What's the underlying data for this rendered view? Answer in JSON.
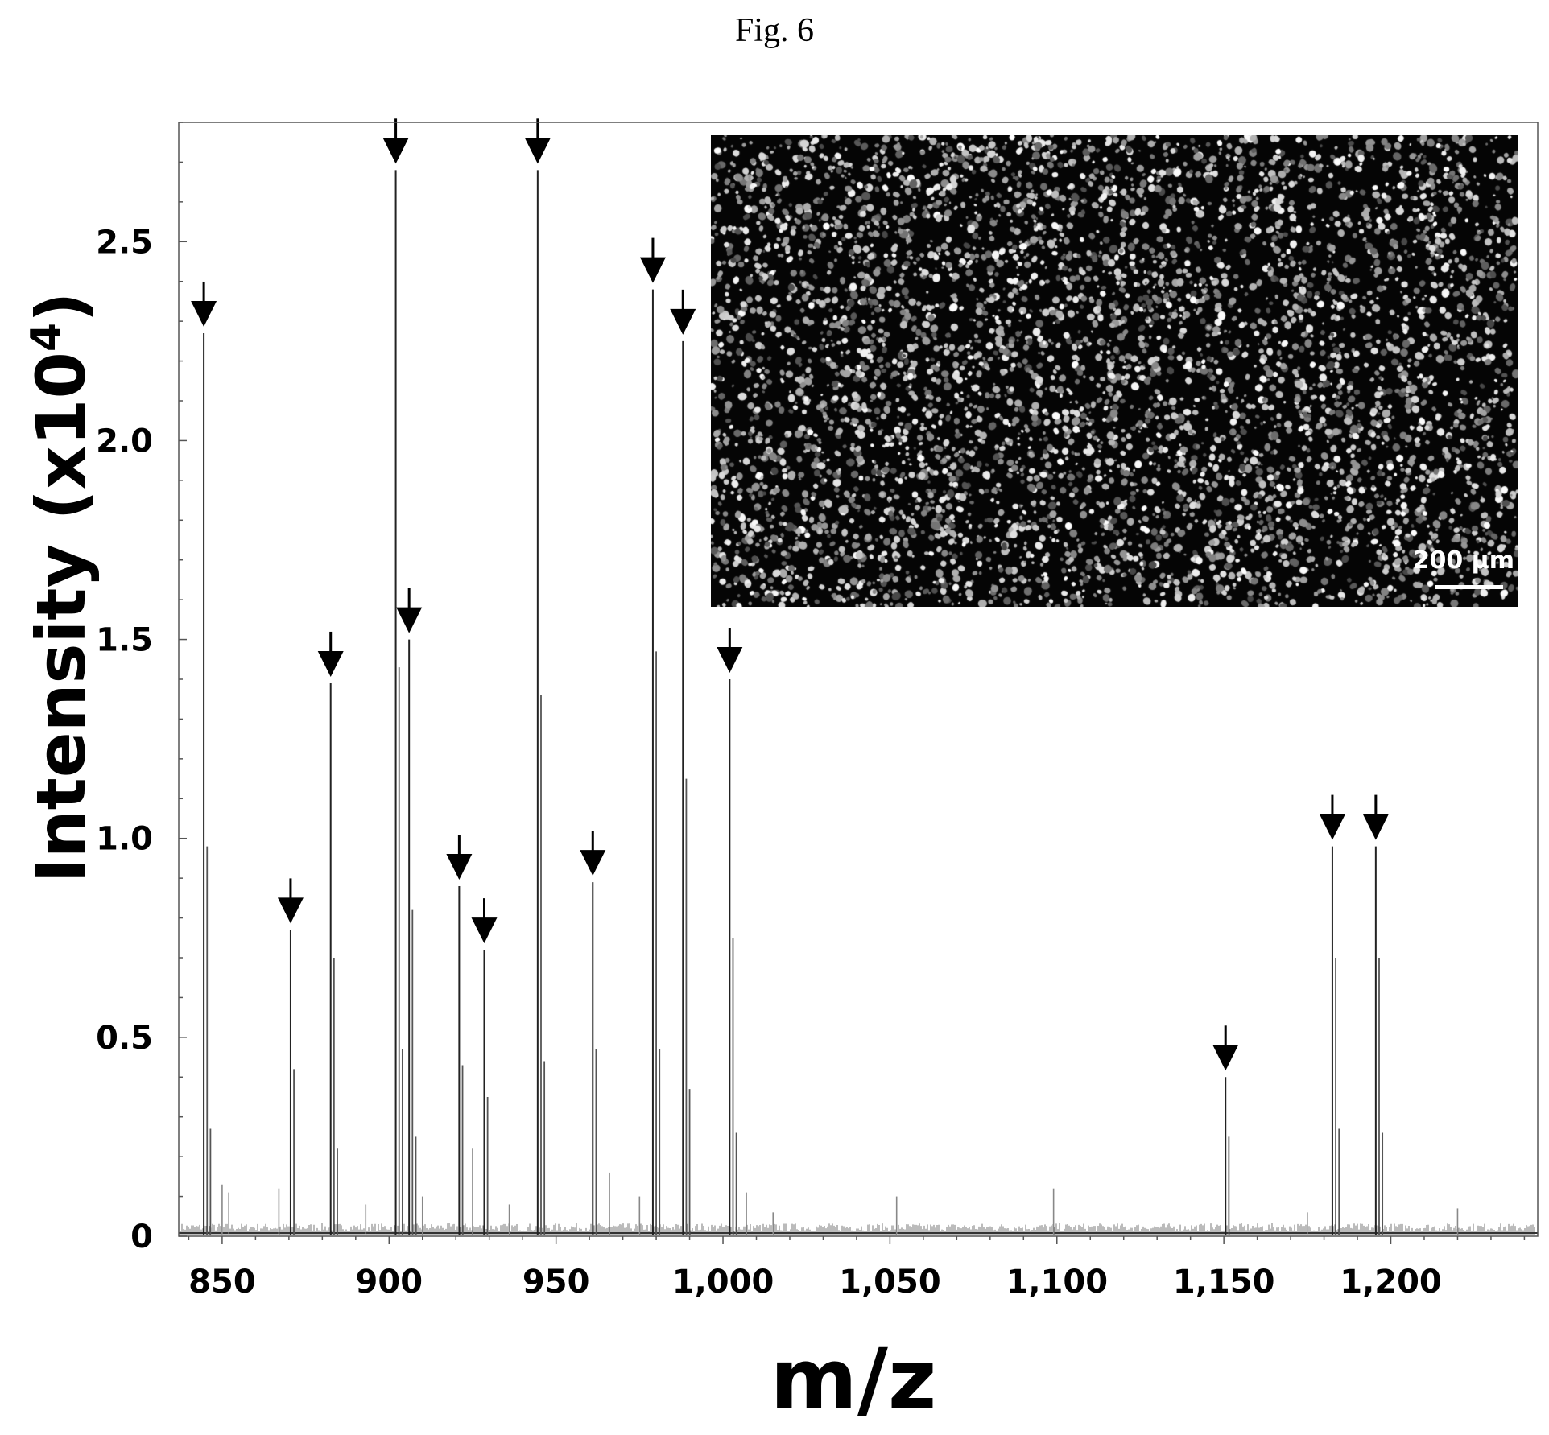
{
  "figure": {
    "title": "Fig. 6"
  },
  "inset": {
    "scale_label": "200 µm",
    "scale_um": 200
  },
  "chart_data": {
    "type": "bar",
    "title": "",
    "xlabel": "m/z",
    "ylabel": "Intensity (x10",
    "ylabel_sup": "4",
    "ylabel_close": ")",
    "xlim": [
      837,
      1244
    ],
    "ylim": [
      0,
      2.8
    ],
    "xticks": [
      850,
      900,
      950,
      1000,
      1050,
      1100,
      1150,
      1200
    ],
    "xtick_labels": [
      "850",
      "900",
      "950",
      "1,000",
      "1,050",
      "1,100",
      "1,150",
      "1,200"
    ],
    "yticks": [
      0,
      0.5,
      1.0,
      1.5,
      2.0,
      2.5
    ],
    "ytick_labels": [
      "0",
      "0.5",
      "1.0",
      "1.5",
      "2.0",
      "2.5"
    ],
    "marked_peaks": [
      {
        "mz": 844.5,
        "intensity": 2.27
      },
      {
        "mz": 870.5,
        "intensity": 0.77
      },
      {
        "mz": 882.5,
        "intensity": 1.39
      },
      {
        "mz": 902.0,
        "intensity": 2.68
      },
      {
        "mz": 906.0,
        "intensity": 1.5
      },
      {
        "mz": 921.0,
        "intensity": 0.88
      },
      {
        "mz": 928.5,
        "intensity": 0.72
      },
      {
        "mz": 944.5,
        "intensity": 2.68
      },
      {
        "mz": 961.0,
        "intensity": 0.89
      },
      {
        "mz": 979.0,
        "intensity": 2.38
      },
      {
        "mz": 988.0,
        "intensity": 2.25
      },
      {
        "mz": 1002.0,
        "intensity": 1.4
      },
      {
        "mz": 1150.5,
        "intensity": 0.4
      },
      {
        "mz": 1182.5,
        "intensity": 0.98
      },
      {
        "mz": 1195.5,
        "intensity": 0.98
      }
    ],
    "isotope_peaks": [
      {
        "mz": 845.5,
        "intensity": 0.98
      },
      {
        "mz": 846.5,
        "intensity": 0.27
      },
      {
        "mz": 871.5,
        "intensity": 0.42
      },
      {
        "mz": 883.5,
        "intensity": 0.7
      },
      {
        "mz": 884.5,
        "intensity": 0.22
      },
      {
        "mz": 903.0,
        "intensity": 1.43
      },
      {
        "mz": 904.0,
        "intensity": 0.47
      },
      {
        "mz": 907.0,
        "intensity": 0.82
      },
      {
        "mz": 908.0,
        "intensity": 0.25
      },
      {
        "mz": 922.0,
        "intensity": 0.43
      },
      {
        "mz": 929.5,
        "intensity": 0.35
      },
      {
        "mz": 945.5,
        "intensity": 1.36
      },
      {
        "mz": 946.5,
        "intensity": 0.44
      },
      {
        "mz": 962.0,
        "intensity": 0.47
      },
      {
        "mz": 980.0,
        "intensity": 1.47
      },
      {
        "mz": 981.0,
        "intensity": 0.47
      },
      {
        "mz": 989.0,
        "intensity": 1.15
      },
      {
        "mz": 990.0,
        "intensity": 0.37
      },
      {
        "mz": 1003.0,
        "intensity": 0.75
      },
      {
        "mz": 1004.0,
        "intensity": 0.26
      },
      {
        "mz": 1151.5,
        "intensity": 0.25
      },
      {
        "mz": 1183.5,
        "intensity": 0.7
      },
      {
        "mz": 1184.5,
        "intensity": 0.27
      },
      {
        "mz": 1196.5,
        "intensity": 0.7
      },
      {
        "mz": 1197.5,
        "intensity": 0.26
      }
    ],
    "minor_peaks": [
      {
        "mz": 850.0,
        "intensity": 0.13
      },
      {
        "mz": 852.0,
        "intensity": 0.11
      },
      {
        "mz": 867.0,
        "intensity": 0.12
      },
      {
        "mz": 893.0,
        "intensity": 0.08
      },
      {
        "mz": 910.0,
        "intensity": 0.1
      },
      {
        "mz": 925.0,
        "intensity": 0.22
      },
      {
        "mz": 936.0,
        "intensity": 0.08
      },
      {
        "mz": 966.0,
        "intensity": 0.16
      },
      {
        "mz": 975.0,
        "intensity": 0.1
      },
      {
        "mz": 1007.0,
        "intensity": 0.11
      },
      {
        "mz": 1015.0,
        "intensity": 0.06
      },
      {
        "mz": 1052.0,
        "intensity": 0.1
      },
      {
        "mz": 1099.0,
        "intensity": 0.12
      },
      {
        "mz": 1175.0,
        "intensity": 0.06
      },
      {
        "mz": 1220.0,
        "intensity": 0.07
      }
    ]
  }
}
